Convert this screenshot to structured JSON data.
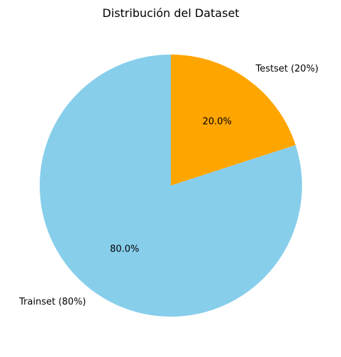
{
  "chart_data": {
    "type": "pie",
    "title": "Distribución del Dataset",
    "start_angle_deg": 90,
    "direction": "clockwise",
    "slices": [
      {
        "label": "Testset (20%)",
        "value": 20,
        "percent_label": "20.0%",
        "color": "#FFA500"
      },
      {
        "label": "Trainset (80%)",
        "value": 80,
        "percent_label": "80.0%",
        "color": "#87CEEB"
      }
    ]
  }
}
